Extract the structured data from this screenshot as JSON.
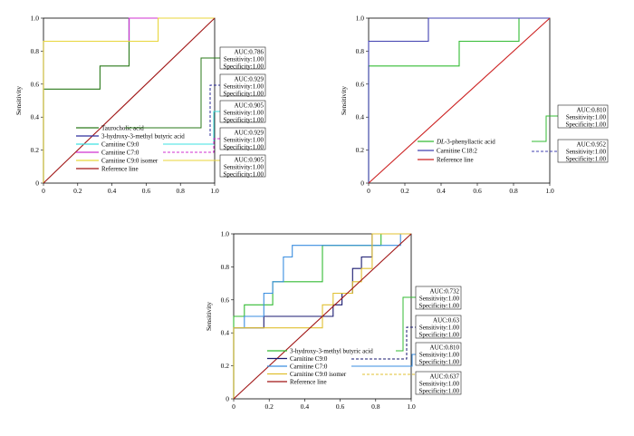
{
  "chart_data": [
    {
      "type": "line",
      "ylabel": "Sensitivity",
      "xlim": [
        0,
        1
      ],
      "ylim": [
        0,
        1
      ],
      "xticks": [
        "0",
        "0.2",
        "0.4",
        "0.6",
        "0.8",
        "1.0"
      ],
      "yticks": [
        "0",
        "0.2",
        "0.4",
        "0.6",
        "0.8",
        "1.0"
      ],
      "legend_placement": "bottom-left",
      "series": [
        {
          "name": "Taurocholic acid",
          "color": "#2a7a1a",
          "x": [
            0,
            0,
            0.33,
            0.33,
            0.5,
            0.5,
            1
          ],
          "y": [
            0,
            0.57,
            0.57,
            0.71,
            0.71,
            1,
            1
          ]
        },
        {
          "name": "3-hydroxy-3-methyl butyric acid",
          "color": "#2f2f9c",
          "x": [
            0,
            0,
            0.5,
            0.5,
            1
          ],
          "y": [
            0,
            0.86,
            0.86,
            1,
            1
          ]
        },
        {
          "name": "Carnitine C9:0",
          "color": "#3ee0e0",
          "x": [
            0,
            0,
            0.5,
            0.5,
            1
          ],
          "y": [
            0,
            0.86,
            0.86,
            1,
            1
          ]
        },
        {
          "name": "Carnitine C7:0",
          "color": "#d030d0",
          "x": [
            0,
            0,
            0.5,
            0.5,
            1
          ],
          "y": [
            0,
            0.86,
            0.86,
            1,
            1
          ]
        },
        {
          "name": "Carnitine C9:0 isomer",
          "color": "#e8d63a",
          "x": [
            0,
            0,
            0.67,
            0.67,
            1
          ],
          "y": [
            0,
            0.86,
            0.86,
            1,
            1
          ]
        },
        {
          "name": "Reference line",
          "color": "#a01515",
          "x": [
            0,
            1
          ],
          "y": [
            0,
            1
          ]
        }
      ],
      "annotations": [
        {
          "series": 0,
          "lines": [
            "AUC:0.786",
            "Sensitivity:1.00",
            "Specificity:1.00"
          ]
        },
        {
          "series": 1,
          "lines": [
            "AUC:0.929",
            "Sensitivity:1.00",
            "Specificity:1.00"
          ]
        },
        {
          "series": 2,
          "lines": [
            "AUC:0.905",
            "Sensitivity:1.00",
            "Specificity:1.00"
          ]
        },
        {
          "series": 3,
          "lines": [
            "AUC:0.929",
            "Sensitivity:1.00",
            "Specificity:1.00"
          ]
        },
        {
          "series": 4,
          "lines": [
            "AUC:0.905",
            "Sensitivity:1.00",
            "Specificity:1.00"
          ]
        }
      ]
    },
    {
      "type": "line",
      "ylabel": "Sensitivity",
      "xlim": [
        0,
        1
      ],
      "ylim": [
        0,
        1
      ],
      "xticks": [
        "0",
        "0.2",
        "0.4",
        "0.6",
        "0.8",
        "1.0"
      ],
      "yticks": [
        "0",
        "0.2",
        "0.4",
        "0.6",
        "0.8",
        "1.0"
      ],
      "legend_placement": "bottom-center",
      "series": [
        {
          "name": "DL-3-phenyllactic acid",
          "name_italic_prefix": "DL",
          "name_rest": "-3-phenyllactic acid",
          "color": "#33bb33",
          "x": [
            0,
            0,
            0.5,
            0.5,
            0.83,
            0.83,
            1
          ],
          "y": [
            0,
            0.71,
            0.71,
            0.86,
            0.86,
            1,
            1
          ]
        },
        {
          "name": "Carnitine C18:2",
          "color": "#4040b0",
          "x": [
            0,
            0,
            0.33,
            0.33,
            1
          ],
          "y": [
            0,
            0.86,
            0.86,
            1,
            1
          ]
        },
        {
          "name": "Reference line",
          "color": "#cc2020",
          "x": [
            0,
            1
          ],
          "y": [
            0,
            1
          ]
        }
      ],
      "annotations": [
        {
          "series": 0,
          "lines": [
            "AUC:0.810",
            "Sensitivity:1.00",
            "Specificity:1.00"
          ]
        },
        {
          "series": 1,
          "lines": [
            "AUC:0.952",
            "Sensitivity:1.00",
            "Specificity:1.00"
          ]
        }
      ]
    },
    {
      "type": "line",
      "ylabel": "Sensitivity",
      "xlim": [
        0,
        1
      ],
      "ylim": [
        0,
        1
      ],
      "xticks": [
        "0",
        "0.2",
        "0.4",
        "0.6",
        "0.8",
        "1.0"
      ],
      "yticks": [
        "0",
        "0.2",
        "0.4",
        "0.6",
        "0.8",
        "1.0"
      ],
      "legend_placement": "bottom-center",
      "series": [
        {
          "name": "3-hydroxy-3-methyl butyric acid",
          "color": "#33bb33",
          "x": [
            0,
            0,
            0.06,
            0.06,
            0.22,
            0.22,
            0.5,
            0.5,
            0.83,
            0.83,
            1
          ],
          "y": [
            0,
            0.5,
            0.5,
            0.57,
            0.57,
            0.71,
            0.71,
            0.93,
            0.93,
            1,
            1
          ]
        },
        {
          "name": "Carnitine C9:0",
          "color": "#1a1a70",
          "x": [
            0,
            0,
            0.17,
            0.17,
            0.56,
            0.56,
            0.61,
            0.61,
            0.67,
            0.67,
            0.72,
            0.72,
            0.78,
            0.78,
            1
          ],
          "y": [
            0,
            0.43,
            0.43,
            0.5,
            0.5,
            0.57,
            0.57,
            0.64,
            0.64,
            0.79,
            0.79,
            0.86,
            0.86,
            1,
            1
          ]
        },
        {
          "name": "Carnitine C7:0",
          "color": "#3a8ee0",
          "x": [
            0,
            0,
            0.06,
            0.06,
            0.17,
            0.17,
            0.22,
            0.22,
            0.28,
            0.28,
            0.33,
            0.33,
            0.39,
            0.39,
            0.94,
            0.94,
            1
          ],
          "y": [
            0,
            0.43,
            0.43,
            0.5,
            0.5,
            0.64,
            0.64,
            0.71,
            0.71,
            0.86,
            0.86,
            0.93,
            0.93,
            0.93,
            0.93,
            1,
            1
          ]
        },
        {
          "name": "Carnitine C9:0 isomer",
          "color": "#e0c030",
          "x": [
            0,
            0,
            0.5,
            0.5,
            0.56,
            0.56,
            0.67,
            0.67,
            0.72,
            0.72,
            0.78,
            0.78,
            1
          ],
          "y": [
            0,
            0.43,
            0.43,
            0.57,
            0.57,
            0.64,
            0.64,
            0.71,
            0.71,
            0.79,
            0.79,
            1,
            1
          ]
        },
        {
          "name": "Reference line",
          "color": "#a01515",
          "x": [
            0,
            1
          ],
          "y": [
            0,
            1
          ]
        }
      ],
      "annotations": [
        {
          "series": 0,
          "lines": [
            "AUC:0.732",
            "Sensitivity:1.00",
            "Specificity:1.00"
          ]
        },
        {
          "series": 1,
          "lines": [
            "AUC:0.63",
            "Sensitivity:1.00",
            "Specificity:1.00"
          ]
        },
        {
          "series": 2,
          "lines": [
            "AUC:0.810",
            "Sensitivity:1.00",
            "Specificity:1.00"
          ]
        },
        {
          "series": 3,
          "lines": [
            "AUC:0.637",
            "Sensitivity:1.00",
            "Specificity:1.00"
          ]
        }
      ]
    }
  ]
}
